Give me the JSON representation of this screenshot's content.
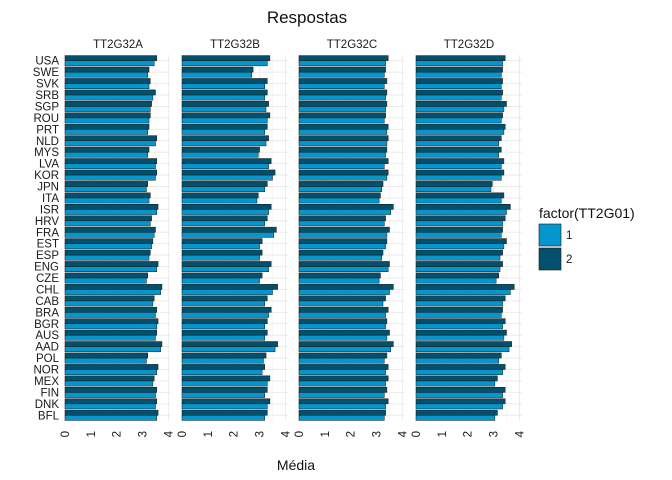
{
  "chart_data": {
    "type": "bar",
    "orientation": "horizontal",
    "title": "Respostas",
    "xlabel": "Média",
    "ylabel": "",
    "xlim": [
      0,
      4.1
    ],
    "x_ticks": [
      "0",
      "1",
      "2",
      "3",
      "4"
    ],
    "grid": true,
    "legend": {
      "title": "factor(TT2G01)",
      "position": "right"
    },
    "categories": [
      "USA",
      "SWE",
      "SVK",
      "SRB",
      "SGP",
      "ROU",
      "PRT",
      "NLD",
      "MYS",
      "LVA",
      "KOR",
      "JPN",
      "ITA",
      "ISR",
      "HRV",
      "FRA",
      "EST",
      "ESP",
      "ENG",
      "CZE",
      "CHL",
      "CAB",
      "BRA",
      "BGR",
      "AUS",
      "AAD",
      "POL",
      "NOR",
      "MEX",
      "FIN",
      "DNK",
      "BFL"
    ],
    "series": [
      {
        "name": "1",
        "color": "#0496cc"
      },
      {
        "name": "2",
        "color": "#03506c"
      }
    ],
    "panels": [
      {
        "title": "TT2G32A",
        "s1": [
          3.45,
          3.2,
          3.25,
          3.4,
          3.3,
          3.25,
          3.2,
          3.5,
          3.2,
          3.5,
          3.5,
          3.15,
          3.25,
          3.55,
          3.3,
          3.45,
          3.35,
          3.25,
          3.55,
          3.15,
          3.7,
          3.4,
          3.5,
          3.55,
          3.5,
          3.7,
          3.15,
          3.55,
          3.4,
          3.5,
          3.5,
          3.55
        ],
        "s2": [
          3.55,
          3.25,
          3.3,
          3.5,
          3.35,
          3.3,
          3.25,
          3.55,
          3.25,
          3.55,
          3.55,
          3.2,
          3.3,
          3.6,
          3.35,
          3.5,
          3.4,
          3.3,
          3.6,
          3.2,
          3.75,
          3.45,
          3.55,
          3.6,
          3.55,
          3.75,
          3.2,
          3.6,
          3.45,
          3.55,
          3.55,
          3.6
        ]
      },
      {
        "title": "TT2G32B",
        "s1": [
          3.3,
          2.7,
          3.2,
          3.2,
          3.25,
          3.3,
          3.2,
          3.25,
          2.95,
          3.35,
          3.5,
          3.2,
          2.9,
          3.35,
          3.2,
          3.55,
          3.0,
          3.0,
          3.35,
          3.0,
          3.5,
          3.2,
          3.35,
          3.2,
          3.2,
          3.6,
          3.15,
          3.1,
          3.3,
          3.2,
          3.3,
          3.2
        ],
        "s2": [
          3.4,
          2.75,
          3.3,
          3.3,
          3.35,
          3.4,
          3.3,
          3.35,
          3.0,
          3.45,
          3.6,
          3.3,
          2.95,
          3.45,
          3.3,
          3.65,
          3.1,
          3.1,
          3.45,
          3.1,
          3.7,
          3.3,
          3.45,
          3.3,
          3.3,
          3.7,
          3.25,
          3.2,
          3.4,
          3.3,
          3.4,
          3.3
        ]
      },
      {
        "title": "TT2G32C",
        "s1": [
          3.35,
          3.3,
          3.3,
          3.35,
          3.35,
          3.3,
          3.4,
          3.4,
          3.35,
          3.3,
          3.4,
          3.2,
          3.1,
          3.55,
          3.3,
          3.4,
          3.35,
          3.2,
          3.45,
          3.1,
          3.5,
          3.25,
          3.35,
          3.35,
          3.4,
          3.55,
          3.3,
          3.35,
          3.35,
          3.3,
          3.35,
          3.3
        ],
        "s2": [
          3.45,
          3.35,
          3.4,
          3.4,
          3.4,
          3.35,
          3.45,
          3.45,
          3.4,
          3.45,
          3.45,
          3.25,
          3.15,
          3.65,
          3.35,
          3.5,
          3.4,
          3.25,
          3.5,
          3.15,
          3.65,
          3.35,
          3.45,
          3.4,
          3.5,
          3.65,
          3.4,
          3.45,
          3.45,
          3.4,
          3.45,
          3.35
        ]
      },
      {
        "title": "TT2G32D",
        "s1": [
          3.35,
          3.3,
          3.3,
          3.3,
          3.4,
          3.3,
          3.4,
          3.2,
          3.2,
          3.3,
          3.3,
          2.9,
          3.3,
          3.5,
          3.35,
          3.3,
          3.4,
          3.25,
          3.25,
          3.1,
          3.65,
          3.35,
          3.3,
          3.35,
          3.4,
          3.6,
          3.2,
          3.35,
          3.05,
          3.35,
          3.35,
          3.05
        ],
        "s2": [
          3.45,
          3.35,
          3.35,
          3.35,
          3.5,
          3.35,
          3.45,
          3.3,
          3.3,
          3.4,
          3.4,
          2.95,
          3.4,
          3.65,
          3.45,
          3.35,
          3.5,
          3.35,
          3.35,
          3.2,
          3.8,
          3.45,
          3.35,
          3.45,
          3.5,
          3.7,
          3.3,
          3.45,
          3.15,
          3.45,
          3.45,
          3.15
        ]
      }
    ]
  }
}
